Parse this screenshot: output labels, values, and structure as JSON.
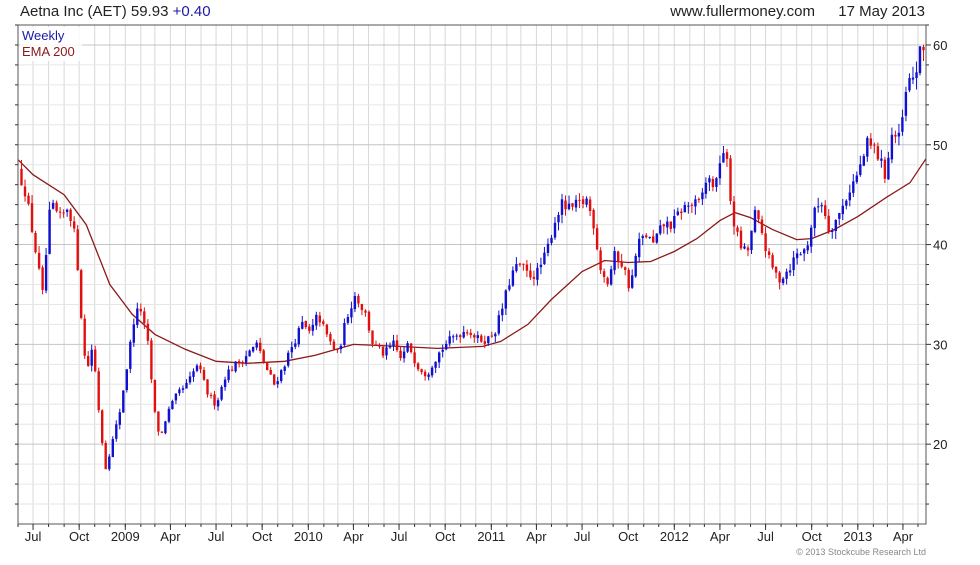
{
  "header": {
    "title": "Aetna Inc (AET) 59.93 +0.40",
    "title_prefix": "Aetna Inc (AET) 59.93",
    "change": "+0.40",
    "source": "www.fullermoney.com",
    "date": "17 May 2013"
  },
  "legend": {
    "period": "Weekly",
    "ema": "EMA 200"
  },
  "footer": {
    "copyright": "© 2013 Stockcube Research Ltd"
  },
  "colors": {
    "up": "#1010d0",
    "down": "#e01010",
    "ema": "#8b1a1a",
    "grid": "#d8d8d8",
    "axis": "#333333",
    "change": "#1a1aa8"
  },
  "chart_data": {
    "type": "candlestick",
    "title": "Aetna Inc (AET) 59.93 +0.40",
    "period": "Weekly",
    "x": {
      "start": "2008-06-01",
      "end": "2013-05-17"
    },
    "ylim": [
      12,
      62
    ],
    "y_ticks": [
      20,
      30,
      40,
      50,
      60
    ],
    "x_ticks": [
      {
        "label": "Jul",
        "date": "2008-07-01"
      },
      {
        "label": "Oct",
        "date": "2008-10-01"
      },
      {
        "label": "2009",
        "date": "2009-01-01"
      },
      {
        "label": "Apr",
        "date": "2009-04-01"
      },
      {
        "label": "Jul",
        "date": "2009-07-01"
      },
      {
        "label": "Oct",
        "date": "2009-10-01"
      },
      {
        "label": "2010",
        "date": "2010-01-01"
      },
      {
        "label": "Apr",
        "date": "2010-04-01"
      },
      {
        "label": "Jul",
        "date": "2010-07-01"
      },
      {
        "label": "Oct",
        "date": "2010-10-01"
      },
      {
        "label": "2011",
        "date": "2011-01-01"
      },
      {
        "label": "Apr",
        "date": "2011-04-01"
      },
      {
        "label": "Jul",
        "date": "2011-07-01"
      },
      {
        "label": "Oct",
        "date": "2011-10-01"
      },
      {
        "label": "2012",
        "date": "2012-01-01"
      },
      {
        "label": "Apr",
        "date": "2012-04-01"
      },
      {
        "label": "Jul",
        "date": "2012-07-01"
      },
      {
        "label": "Oct",
        "date": "2012-10-01"
      },
      {
        "label": "2013",
        "date": "2013-01-01"
      },
      {
        "label": "Apr",
        "date": "2013-04-01"
      }
    ],
    "grid": true,
    "legend_position": "top-left",
    "price_path": [
      [
        "2008-06-01",
        47.5
      ],
      [
        "2008-06-15",
        45.5
      ],
      [
        "2008-07-01",
        41
      ],
      [
        "2008-07-20",
        35
      ],
      [
        "2008-08-05",
        44
      ],
      [
        "2008-08-25",
        42.5
      ],
      [
        "2008-09-10",
        44
      ],
      [
        "2008-09-25",
        40
      ],
      [
        "2008-10-05",
        33
      ],
      [
        "2008-10-15",
        27
      ],
      [
        "2008-10-28",
        30
      ],
      [
        "2008-11-10",
        23
      ],
      [
        "2008-11-22",
        17.5
      ],
      [
        "2008-12-05",
        20
      ],
      [
        "2008-12-20",
        23
      ],
      [
        "2009-01-05",
        28
      ],
      [
        "2009-01-20",
        33
      ],
      [
        "2009-02-01",
        33.5
      ],
      [
        "2009-02-15",
        30
      ],
      [
        "2009-03-01",
        23
      ],
      [
        "2009-03-12",
        20.5
      ],
      [
        "2009-03-25",
        23
      ],
      [
        "2009-04-15",
        25
      ],
      [
        "2009-05-05",
        26
      ],
      [
        "2009-05-25",
        28
      ],
      [
        "2009-06-15",
        25
      ],
      [
        "2009-07-01",
        24
      ],
      [
        "2009-07-20",
        27
      ],
      [
        "2009-08-10",
        28
      ],
      [
        "2009-09-01",
        29
      ],
      [
        "2009-09-20",
        30
      ],
      [
        "2009-10-10",
        27.5
      ],
      [
        "2009-10-25",
        26
      ],
      [
        "2009-11-10",
        27.5
      ],
      [
        "2009-12-01",
        30
      ],
      [
        "2009-12-20",
        32
      ],
      [
        "2010-01-05",
        31
      ],
      [
        "2010-01-20",
        33
      ],
      [
        "2010-02-10",
        30.5
      ],
      [
        "2010-03-01",
        29
      ],
      [
        "2010-03-20",
        33
      ],
      [
        "2010-04-05",
        35
      ],
      [
        "2010-04-25",
        33
      ],
      [
        "2010-05-10",
        30
      ],
      [
        "2010-06-01",
        29
      ],
      [
        "2010-06-20",
        30
      ],
      [
        "2010-07-05",
        28.5
      ],
      [
        "2010-07-20",
        30
      ],
      [
        "2010-08-05",
        28
      ],
      [
        "2010-08-25",
        27
      ],
      [
        "2010-09-10",
        28.5
      ],
      [
        "2010-10-01",
        30
      ],
      [
        "2010-10-25",
        31
      ],
      [
        "2010-11-15",
        31.5
      ],
      [
        "2010-12-05",
        30.5
      ],
      [
        "2010-12-25",
        30.5
      ],
      [
        "2011-01-10",
        31.5
      ],
      [
        "2011-01-25",
        34
      ],
      [
        "2011-02-10",
        37
      ],
      [
        "2011-02-25",
        38
      ],
      [
        "2011-03-15",
        37
      ],
      [
        "2011-04-01",
        37
      ],
      [
        "2011-04-20",
        39
      ],
      [
        "2011-05-05",
        42
      ],
      [
        "2011-05-20",
        44
      ],
      [
        "2011-06-05",
        43.5
      ],
      [
        "2011-06-25",
        44
      ],
      [
        "2011-07-10",
        44.5
      ],
      [
        "2011-07-25",
        42
      ],
      [
        "2011-08-05",
        38
      ],
      [
        "2011-08-20",
        36
      ],
      [
        "2011-09-05",
        39
      ],
      [
        "2011-09-20",
        38
      ],
      [
        "2011-10-05",
        35.5
      ],
      [
        "2011-10-20",
        40
      ],
      [
        "2011-11-05",
        41
      ],
      [
        "2011-11-20",
        40
      ],
      [
        "2011-12-10",
        42
      ],
      [
        "2011-12-28",
        42
      ],
      [
        "2012-01-15",
        43.5
      ],
      [
        "2012-02-01",
        44
      ],
      [
        "2012-02-20",
        44
      ],
      [
        "2012-03-05",
        46.5
      ],
      [
        "2012-03-25",
        46
      ],
      [
        "2012-04-05",
        50
      ],
      [
        "2012-04-15",
        48
      ],
      [
        "2012-04-25",
        43
      ],
      [
        "2012-05-10",
        40
      ],
      [
        "2012-05-25",
        39
      ],
      [
        "2012-06-10",
        43
      ],
      [
        "2012-06-25",
        41
      ],
      [
        "2012-07-10",
        38
      ],
      [
        "2012-07-28",
        36.5
      ],
      [
        "2012-08-15",
        37.5
      ],
      [
        "2012-09-01",
        39
      ],
      [
        "2012-09-20",
        39.5
      ],
      [
        "2012-10-05",
        43
      ],
      [
        "2012-10-20",
        44.5
      ],
      [
        "2012-11-05",
        41.5
      ],
      [
        "2012-11-25",
        43
      ],
      [
        "2012-12-15",
        45.5
      ],
      [
        "2013-01-01",
        47
      ],
      [
        "2013-01-20",
        50
      ],
      [
        "2013-02-05",
        49.5
      ],
      [
        "2013-02-25",
        47
      ],
      [
        "2013-03-10",
        51
      ],
      [
        "2013-03-25",
        50.5
      ],
      [
        "2013-04-10",
        56
      ],
      [
        "2013-04-25",
        57
      ],
      [
        "2013-05-05",
        59
      ],
      [
        "2013-05-17",
        59.93
      ]
    ],
    "ema_points": [
      [
        "2008-06-01",
        48.5
      ],
      [
        "2008-07-01",
        47
      ],
      [
        "2008-09-01",
        45
      ],
      [
        "2008-10-15",
        42
      ],
      [
        "2008-12-01",
        36
      ],
      [
        "2009-01-15",
        33
      ],
      [
        "2009-03-01",
        31
      ],
      [
        "2009-05-01",
        29.5
      ],
      [
        "2009-07-01",
        28.3
      ],
      [
        "2009-09-01",
        28.1
      ],
      [
        "2009-11-15",
        28.3
      ],
      [
        "2010-01-15",
        28.9
      ],
      [
        "2010-04-01",
        30
      ],
      [
        "2010-07-01",
        29.8
      ],
      [
        "2010-09-15",
        29.6
      ],
      [
        "2010-12-15",
        29.8
      ],
      [
        "2011-01-20",
        30.3
      ],
      [
        "2011-03-15",
        32
      ],
      [
        "2011-05-01",
        34.5
      ],
      [
        "2011-07-01",
        37.3
      ],
      [
        "2011-08-15",
        38.4
      ],
      [
        "2011-10-01",
        38.2
      ],
      [
        "2011-11-15",
        38.3
      ],
      [
        "2012-01-01",
        39.3
      ],
      [
        "2012-02-15",
        40.6
      ],
      [
        "2012-04-01",
        42.4
      ],
      [
        "2012-05-01",
        43.2
      ],
      [
        "2012-06-01",
        42.7
      ],
      [
        "2012-07-15",
        41.5
      ],
      [
        "2012-09-01",
        40.5
      ],
      [
        "2012-10-01",
        40.6
      ],
      [
        "2012-11-15",
        41.5
      ],
      [
        "2013-01-01",
        42.8
      ],
      [
        "2013-03-01",
        44.8
      ],
      [
        "2013-04-15",
        46.2
      ],
      [
        "2013-05-17",
        48.6
      ]
    ]
  }
}
